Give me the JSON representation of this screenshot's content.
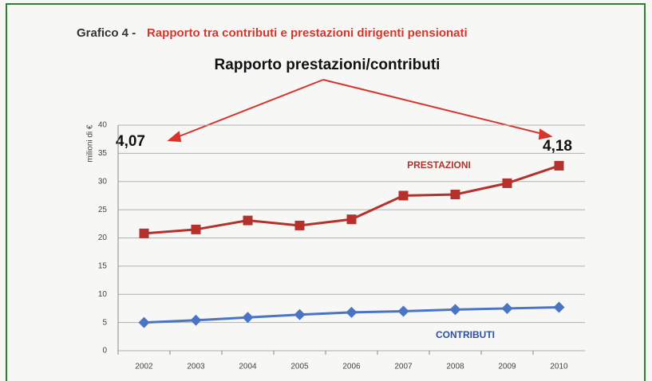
{
  "chart_data": {
    "type": "line",
    "figure_label": "Grafico 4 -",
    "title": "Rapporto tra contributi e prestazioni dirigenti pensionati",
    "subtitle": "Rapporto prestazioni/contributi",
    "y_label": "milioni di €",
    "annotations": [
      "4,07",
      "4,18"
    ],
    "categories": [
      "2002",
      "2003",
      "2004",
      "2005",
      "2006",
      "2007",
      "2008",
      "2009",
      "2010"
    ],
    "series": [
      {
        "name": "PRESTAZIONI",
        "color": "#b5312b",
        "marker": "square",
        "values": [
          20.8,
          21.5,
          23.1,
          22.2,
          23.3,
          27.5,
          27.7,
          29.7,
          32.8
        ]
      },
      {
        "name": "CONTRIBUTI",
        "color": "#4a74c4",
        "marker": "diamond",
        "values": [
          5,
          5.4,
          5.9,
          6.4,
          6.8,
          7,
          7.3,
          7.5,
          7.7
        ]
      }
    ],
    "ylim": [
      0,
      40
    ],
    "yticks": [
      0,
      5,
      10,
      15,
      20,
      25,
      30,
      35,
      40
    ],
    "grid": true
  }
}
